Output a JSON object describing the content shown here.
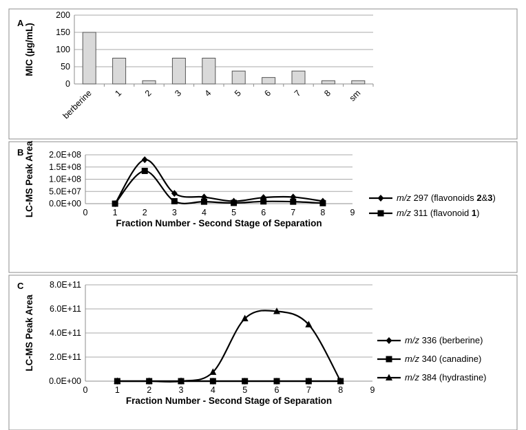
{
  "chart_data": [
    {
      "panel": "A",
      "type": "bar",
      "title": "",
      "xlabel": "",
      "ylabel": "MIC (µg/mL)",
      "categories": [
        "berberine",
        "1",
        "2",
        "3",
        "4",
        "5",
        "6",
        "7",
        "8",
        "sm"
      ],
      "values": [
        150,
        75,
        9.4,
        75,
        75,
        37.5,
        18.75,
        37.5,
        9.4,
        9.4
      ],
      "ylim": [
        0,
        200
      ],
      "yticks": [
        "0",
        "50",
        "100",
        "150",
        "200"
      ],
      "grid": true,
      "bar_color": "#d9d9d9"
    },
    {
      "panel": "B",
      "type": "line",
      "title": "",
      "xlabel": "Fraction Number - Second Stage of Separation",
      "ylabel": "LC-MS Peak Area",
      "xlim": [
        0,
        9
      ],
      "xticks": [
        "0",
        "1",
        "2",
        "3",
        "4",
        "5",
        "6",
        "7",
        "8",
        "9"
      ],
      "ylim": [
        0,
        200000000
      ],
      "yticks": [
        "0.0E+00",
        "5.0E+07",
        "1.0E+08",
        "1.5E+08",
        "2.0E+08"
      ],
      "grid": true,
      "legend": "right",
      "series": [
        {
          "marker": "diamond",
          "legend": {
            "prefix": "m/z",
            "value": "297",
            "note_pre": "(flavonoids ",
            "bold1": "2",
            "amp": "&",
            "bold2": "3",
            "note_post": ")"
          },
          "x": [
            1,
            2,
            3,
            4,
            5,
            6,
            7,
            8
          ],
          "y": [
            0,
            180000000,
            42000000,
            27000000,
            10000000,
            25000000,
            27000000,
            10000000
          ]
        },
        {
          "marker": "square",
          "legend": {
            "prefix": "m/z",
            "value": "311",
            "note_pre": "(flavonoid ",
            "bold1": "1",
            "amp": "",
            "bold2": "",
            "note_post": ")"
          },
          "x": [
            1,
            2,
            3,
            4,
            5,
            6,
            7,
            8
          ],
          "y": [
            0,
            134000000,
            10000000,
            8000000,
            3000000,
            9000000,
            8000000,
            2000000
          ]
        }
      ]
    },
    {
      "panel": "C",
      "type": "line",
      "title": "",
      "xlabel": "Fraction Number - Second Stage of Separation",
      "ylabel": "LC-MS Peak Area",
      "xlim": [
        0,
        9
      ],
      "xticks": [
        "0",
        "1",
        "2",
        "3",
        "4",
        "5",
        "6",
        "7",
        "8",
        "9"
      ],
      "ylim": [
        0,
        800000000000
      ],
      "yticks": [
        "0.0E+00",
        "2.0E+11",
        "4.0E+11",
        "6.0E+11",
        "8.0E+11"
      ],
      "grid": true,
      "legend": "right",
      "series": [
        {
          "marker": "diamond",
          "legend": {
            "prefix": "m/z",
            "value": "336",
            "note_pre": "(berberine)",
            "bold1": "",
            "amp": "",
            "bold2": "",
            "note_post": ""
          },
          "x": [
            1,
            2,
            3,
            4,
            5,
            6,
            7,
            8
          ],
          "y": [
            0,
            0,
            0,
            0,
            0,
            0,
            0,
            0
          ]
        },
        {
          "marker": "square",
          "legend": {
            "prefix": "m/z",
            "value": "340",
            "note_pre": "(canadine)",
            "bold1": "",
            "amp": "",
            "bold2": "",
            "note_post": ""
          },
          "x": [
            1,
            2,
            3,
            4,
            5,
            6,
            7,
            8
          ],
          "y": [
            0,
            0,
            0,
            0,
            0,
            0,
            0,
            0
          ]
        },
        {
          "marker": "triangle",
          "legend": {
            "prefix": "m/z",
            "value": "384",
            "note_pre": "(hydrastine)",
            "bold1": "",
            "amp": "",
            "bold2": "",
            "note_post": ""
          },
          "x": [
            1,
            2,
            3,
            4,
            5,
            6,
            7,
            8
          ],
          "y": [
            0,
            0,
            0,
            75000000000,
            520000000000,
            580000000000,
            470000000000,
            0
          ]
        }
      ]
    }
  ]
}
